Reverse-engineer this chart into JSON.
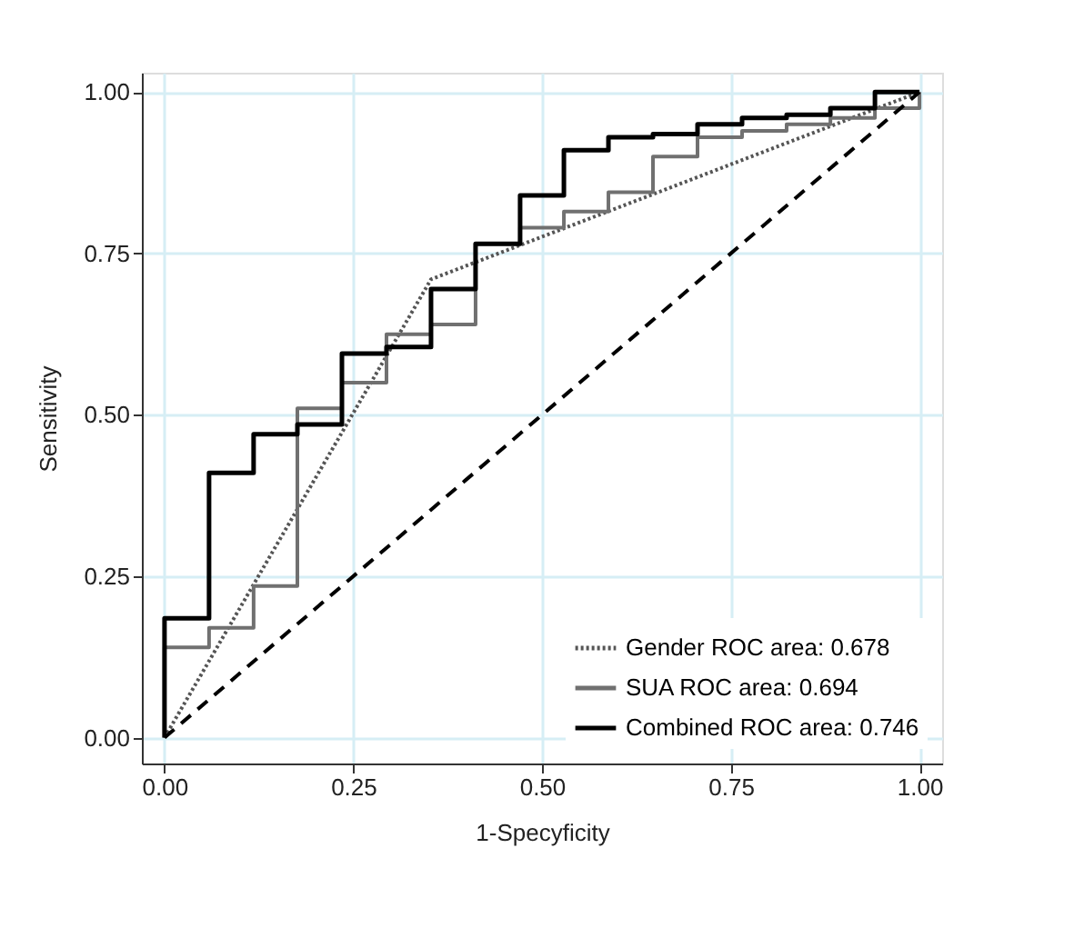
{
  "chart_data": {
    "type": "line",
    "xlabel": "1-Specyficity",
    "ylabel": "Sensitivity",
    "xlim": [
      -0.03,
      1.03
    ],
    "ylim": [
      -0.04,
      1.03
    ],
    "xticks": [
      {
        "value": 0,
        "label": "0.00"
      },
      {
        "value": 0.25,
        "label": "0.25"
      },
      {
        "value": 0.5,
        "label": "0.50"
      },
      {
        "value": 0.75,
        "label": "0.75"
      },
      {
        "value": 1,
        "label": "1.00"
      }
    ],
    "yticks": [
      {
        "value": 0,
        "label": "0.00"
      },
      {
        "value": 0.25,
        "label": "0.25"
      },
      {
        "value": 0.5,
        "label": "0.50"
      },
      {
        "value": 0.75,
        "label": "0.75"
      },
      {
        "value": 1,
        "label": "1.00"
      }
    ],
    "grid": true,
    "legend": "bottom right",
    "series": [
      {
        "name": "Gender ROC area: 0.678",
        "type": "line",
        "line_style": "dotted",
        "color": "#555555",
        "x": [
          0,
          0.353,
          1
        ],
        "values": [
          0,
          0.71,
          1
        ]
      },
      {
        "name": "SUA ROC area: 0.694",
        "type": "step",
        "line_style": "solid",
        "color": "#707070",
        "x": [
          0,
          0,
          0.059,
          0.118,
          0.176,
          0.235,
          0.294,
          0.353,
          0.412,
          0.471,
          0.529,
          0.588,
          0.647,
          0.706,
          0.765,
          0.824,
          0.882,
          0.941,
          1
        ],
        "values": [
          0,
          0.14,
          0.17,
          0.235,
          0.51,
          0.55,
          0.625,
          0.64,
          0.765,
          0.79,
          0.815,
          0.845,
          0.9,
          0.93,
          0.94,
          0.95,
          0.96,
          0.975,
          1
        ]
      },
      {
        "name": "Combined ROC area: 0.746",
        "type": "step",
        "line_style": "solid",
        "color": "#000000",
        "x": [
          0,
          0,
          0.059,
          0.118,
          0.176,
          0.235,
          0.294,
          0.353,
          0.412,
          0.471,
          0.529,
          0.588,
          0.647,
          0.706,
          0.765,
          0.824,
          0.882,
          0.941,
          1
        ],
        "values": [
          0,
          0.185,
          0.41,
          0.47,
          0.485,
          0.595,
          0.605,
          0.695,
          0.765,
          0.84,
          0.91,
          0.93,
          0.935,
          0.95,
          0.96,
          0.965,
          0.975,
          1,
          1
        ]
      },
      {
        "line_style": "dashed",
        "color": "#000000",
        "x": [
          0,
          1
        ],
        "values": [
          0,
          1
        ]
      }
    ]
  }
}
